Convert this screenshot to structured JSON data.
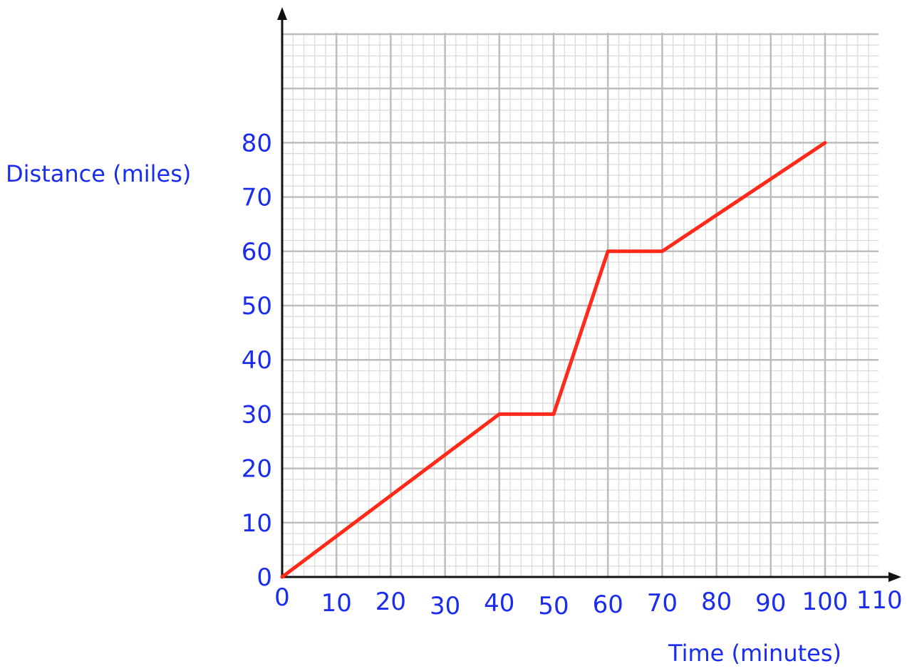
{
  "chart_data": {
    "type": "line",
    "title": "",
    "xlabel": "Time (minutes)",
    "ylabel": "Distance (miles)",
    "x_ticks": [
      "0",
      "10",
      "20",
      "30",
      "40",
      "50",
      "60",
      "70",
      "80",
      "90",
      "100",
      "110"
    ],
    "y_ticks": [
      "0",
      "10",
      "20",
      "30",
      "40",
      "50",
      "60",
      "70",
      "80"
    ],
    "xlim": [
      0,
      110
    ],
    "ylim": [
      0,
      100
    ],
    "grid": true,
    "legend": "none",
    "series": [
      {
        "color": "#ff2a1a",
        "x": [
          0,
          40,
          50,
          60,
          70,
          100
        ],
        "y": [
          0,
          30,
          30,
          60,
          60,
          80
        ]
      }
    ]
  },
  "colors": {
    "label": "#1a2cf0",
    "line": "#ff2a1a",
    "grid_major": "#bdbdbd",
    "grid_minor": "#d9d9d9",
    "axis": "#111111"
  }
}
